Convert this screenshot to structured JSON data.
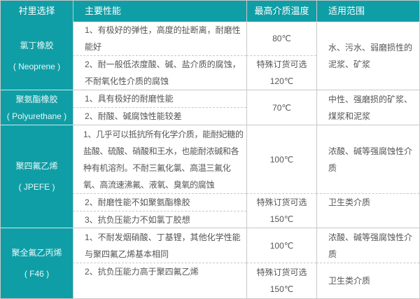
{
  "header": {
    "col1": "衬里选择",
    "col2": "主要性能",
    "col3": "最高介质温度",
    "col4": "适用范围"
  },
  "rows": [
    {
      "lining": "氯丁橡胶",
      "lining_en": "( Neoprene )",
      "props": [
        "1、有极好的弹性，高度的扯断离，耐磨性能好",
        "2、耐一般低浓度酸、碱、盐介质的腐蚀，不耐氧化性介质的腐蚀"
      ],
      "temps": [
        "80℃",
        "特殊订货可选",
        "120℃"
      ],
      "scope": [
        "水、污水、弱磨损性的泥浆、矿浆"
      ]
    },
    {
      "lining": "聚氨酯橡胶",
      "lining_en": "( Polyurethane )",
      "props": [
        "1、具有极好的耐磨性能",
        "2、耐酸、碱腐蚀性能较差"
      ],
      "temps": [
        "70℃"
      ],
      "scope": [
        "中性、强磨损的矿浆、煤浆和泥浆"
      ]
    },
    {
      "lining": "聚四氟乙烯",
      "lining_en": "( JPEFE )",
      "props": [
        "1、几乎可以抵抗所有化学介质，能耐妃糖的盐酸、硫酸、硝酸和王水，也能耐浓碱和各种有机溶剂。不耐三氟化氯、高温三氟化氧、高流速沸氟、液氧、臭氧的腐蚀",
        "2、耐磨性能不如聚氨酯橡胶",
        "3、抗负压能力不如氯丁胶想"
      ],
      "temps": [
        "100℃",
        "特殊订货可选",
        "150℃"
      ],
      "scope": [
        "浓酸、碱等强腐蚀性介质",
        "卫生类介质"
      ]
    },
    {
      "lining": "聚全氟乙丙烯",
      "lining_en": "( F46 )",
      "props": [
        "1、不耐发烟硝酸、丁基锂，其他化学性能与聚四氟乙烯基本相同",
        "2、抗负压能力高于聚四氟乙烯"
      ],
      "temps": [
        "100℃",
        "特殊订货可选",
        "150℃"
      ],
      "scope": [
        "浓酸、碱等强腐蚀性介质",
        "卫生类介质"
      ]
    }
  ],
  "colors": {
    "header_bg": "#0f9ea6",
    "border": "#c8c8c8",
    "text": "#555555"
  }
}
